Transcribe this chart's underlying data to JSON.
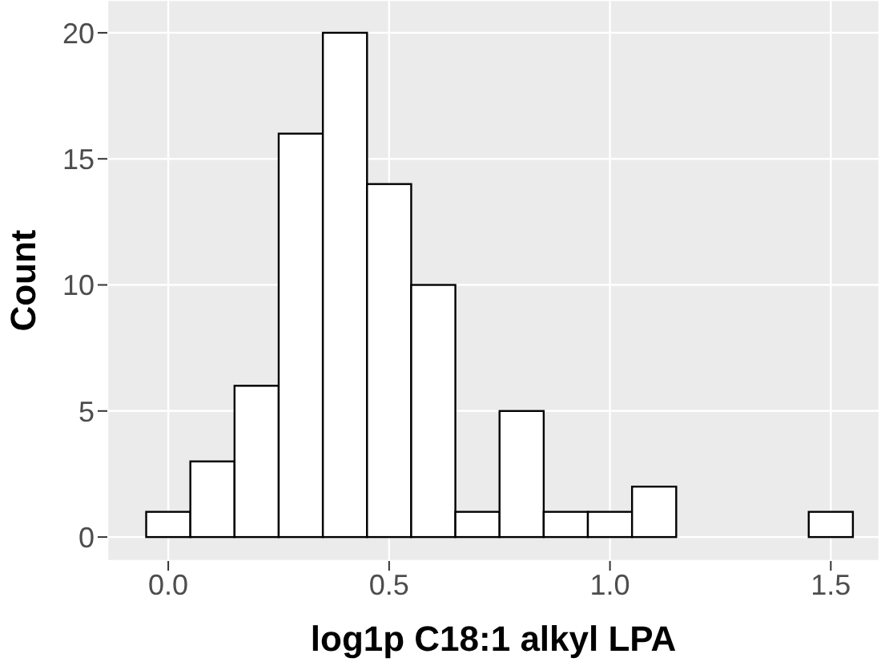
{
  "chart_data": {
    "type": "histogram",
    "xlabel": "log1p C18:1 alkyl LPA",
    "ylabel": "Count",
    "bins": [
      -0.05,
      0.05,
      0.15,
      0.25,
      0.35,
      0.45,
      0.55,
      0.65,
      0.75,
      0.85,
      0.95,
      1.05,
      1.15,
      1.25,
      1.35,
      1.45,
      1.55
    ],
    "values": [
      1,
      3,
      6,
      16,
      20,
      14,
      10,
      1,
      5,
      1,
      1,
      2,
      0,
      0,
      0,
      1
    ],
    "color": "#ffffff",
    "xlim": [
      -0.138,
      1.61
    ],
    "xticks": [
      {
        "value": 0,
        "label": "0.0"
      },
      {
        "value": 0.5,
        "label": "0.5"
      },
      {
        "value": 1,
        "label": "1.0"
      },
      {
        "value": 1.5,
        "label": "1.5"
      }
    ],
    "ylim": [
      -0.95,
      21.3
    ],
    "yticks": [
      0,
      5,
      10,
      15,
      20
    ],
    "grid": true
  }
}
